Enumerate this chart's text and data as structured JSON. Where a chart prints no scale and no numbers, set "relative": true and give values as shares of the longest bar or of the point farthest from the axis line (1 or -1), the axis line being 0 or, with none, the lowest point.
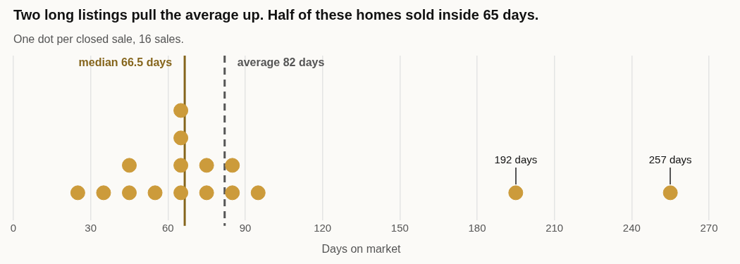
{
  "chart_data": {
    "type": "scatter",
    "title": "Two long listings pull the average up. Half of these homes sold inside 65 days.",
    "subtitle": "One dot per closed sale, 16 sales.",
    "xlabel": "Days on market",
    "relative": true,
    "x": [
      25,
      35,
      45,
      55,
      65,
      75,
      85,
      95,
      195,
      255,
      45,
      65,
      75,
      85,
      65,
      65
    ],
    "values": [
      0.25,
      0.25,
      0.25,
      0.25,
      0.25,
      0.25,
      0.25,
      0.25,
      0.25,
      0.25,
      0.5,
      0.5,
      0.5,
      0.5,
      0.75,
      1
    ],
    "color": "#cc9b3b",
    "marker": "circle",
    "xlim": [
      0,
      270
    ],
    "xticks": [
      0,
      30,
      60,
      90,
      120,
      150,
      180,
      210,
      240,
      270
    ],
    "grid": "x",
    "tick_labels": "x",
    "legend": false,
    "ref_lines": [
      {
        "axis": "x",
        "value": 66.5,
        "label": "median 66.5 days",
        "color": "#85651c",
        "line_style": "solid"
      },
      {
        "axis": "x",
        "value": 82,
        "label": "average 82 days",
        "color": "#555555",
        "line_style": "dashed"
      }
    ],
    "annotations": [
      {
        "text": "192 days",
        "x": 195,
        "y": 0.25
      },
      {
        "text": "257 days",
        "x": 255,
        "y": 0.25
      }
    ]
  }
}
